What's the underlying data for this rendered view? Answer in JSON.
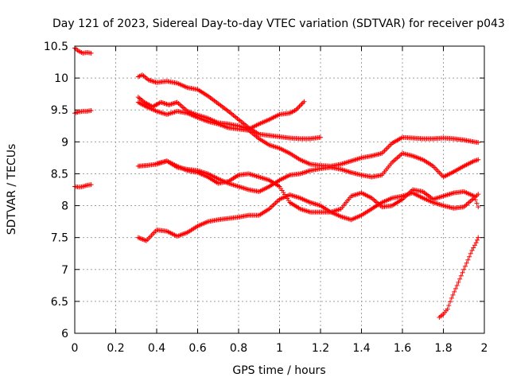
{
  "chart_data": {
    "type": "scatter",
    "title": "Day 121 of 2023, Sidereal Day-to-day VTEC variation (SDTVAR) for receiver p043",
    "xlabel": "GPS time / hours",
    "ylabel": "SDTVAR / TECUs",
    "xlim": [
      0,
      2
    ],
    "ylim": [
      6,
      10.5
    ],
    "grid": true,
    "marker": "+",
    "marker_color": "#ff0000",
    "xticks": [
      {
        "value": 0,
        "label": "0"
      },
      {
        "value": 0.2,
        "label": "0.2"
      },
      {
        "value": 0.4,
        "label": "0.4"
      },
      {
        "value": 0.6,
        "label": "0.6"
      },
      {
        "value": 0.8,
        "label": "0.8"
      },
      {
        "value": 1.0,
        "label": "1"
      },
      {
        "value": 1.2,
        "label": "1.2"
      },
      {
        "value": 1.4,
        "label": "1.4"
      },
      {
        "value": 1.6,
        "label": "1.6"
      },
      {
        "value": 1.8,
        "label": "1.8"
      },
      {
        "value": 2.0,
        "label": "2"
      }
    ],
    "yticks": [
      {
        "value": 6,
        "label": "6"
      },
      {
        "value": 6.5,
        "label": "6.5"
      },
      {
        "value": 7,
        "label": "7"
      },
      {
        "value": 7.5,
        "label": "7.5"
      },
      {
        "value": 8,
        "label": "8"
      },
      {
        "value": 8.5,
        "label": "8.5"
      },
      {
        "value": 9,
        "label": "9"
      },
      {
        "value": 9.5,
        "label": "9.5"
      },
      {
        "value": 10,
        "label": "10"
      },
      {
        "value": 10.5,
        "label": "10.5"
      }
    ],
    "series": [
      {
        "name": "s1",
        "x": [
          0.0,
          0.02,
          0.04,
          0.06,
          0.08
        ],
        "y": [
          10.47,
          10.42,
          10.39,
          10.4,
          10.39
        ]
      },
      {
        "name": "s2",
        "x": [
          0.0,
          0.02,
          0.04,
          0.06,
          0.08
        ],
        "y": [
          9.45,
          9.47,
          9.48,
          9.48,
          9.49
        ]
      },
      {
        "name": "s3",
        "x": [
          0.0,
          0.02,
          0.04,
          0.06,
          0.08
        ],
        "y": [
          8.3,
          8.29,
          8.3,
          8.32,
          8.33
        ]
      },
      {
        "name": "s4",
        "x": [
          0.31,
          0.33,
          0.36,
          0.4,
          0.45,
          0.5,
          0.55,
          0.6,
          0.65,
          0.7,
          0.75,
          0.8,
          0.85,
          0.9,
          0.95,
          1.0,
          1.05,
          1.1,
          1.15,
          1.2
        ],
        "y": [
          10.02,
          10.05,
          9.97,
          9.93,
          9.95,
          9.92,
          9.85,
          9.82,
          9.72,
          9.6,
          9.48,
          9.35,
          9.22,
          9.12,
          9.1,
          9.08,
          9.06,
          9.05,
          9.05,
          9.07
        ]
      },
      {
        "name": "s5",
        "x": [
          0.31,
          0.34,
          0.38,
          0.42,
          0.46,
          0.5,
          0.55,
          0.6,
          0.65,
          0.7,
          0.75,
          0.8,
          0.85,
          0.9,
          0.95,
          1.0,
          1.05,
          1.08,
          1.12
        ],
        "y": [
          9.7,
          9.62,
          9.55,
          9.62,
          9.58,
          9.62,
          9.48,
          9.42,
          9.37,
          9.3,
          9.28,
          9.25,
          9.2,
          9.28,
          9.35,
          9.43,
          9.45,
          9.5,
          9.63
        ]
      },
      {
        "name": "s6",
        "x": [
          0.31,
          0.35,
          0.4,
          0.45,
          0.5,
          0.55,
          0.6,
          0.65,
          0.7,
          0.75,
          0.8,
          0.85,
          0.9,
          0.95,
          1.0,
          1.05,
          1.1,
          1.15,
          1.2,
          1.25,
          1.3,
          1.35,
          1.4,
          1.45,
          1.5,
          1.55,
          1.6,
          1.65,
          1.7,
          1.75,
          1.8,
          1.85,
          1.9,
          1.95,
          1.97
        ],
        "y": [
          9.62,
          9.55,
          9.48,
          9.43,
          9.48,
          9.45,
          9.38,
          9.32,
          9.28,
          9.22,
          9.2,
          9.18,
          9.05,
          8.95,
          8.9,
          8.82,
          8.72,
          8.65,
          8.63,
          8.62,
          8.65,
          8.7,
          8.75,
          8.78,
          8.82,
          8.98,
          9.07,
          9.06,
          9.05,
          9.05,
          9.06,
          9.05,
          9.03,
          9.0,
          8.99
        ]
      },
      {
        "name": "s7",
        "x": [
          0.31,
          0.35,
          0.4,
          0.45,
          0.5,
          0.55,
          0.6,
          0.65,
          0.7,
          0.75,
          0.8,
          0.85,
          0.9,
          0.95,
          1.0,
          1.05,
          1.1,
          1.15,
          1.2,
          1.25,
          1.3,
          1.35,
          1.4,
          1.45,
          1.5,
          1.55,
          1.6,
          1.65,
          1.7,
          1.75,
          1.8,
          1.85,
          1.9,
          1.95,
          1.97
        ],
        "y": [
          8.62,
          8.63,
          8.65,
          8.7,
          8.6,
          8.57,
          8.55,
          8.5,
          8.42,
          8.35,
          8.3,
          8.25,
          8.22,
          8.3,
          8.4,
          8.48,
          8.5,
          8.55,
          8.58,
          8.6,
          8.57,
          8.52,
          8.48,
          8.45,
          8.48,
          8.68,
          8.82,
          8.78,
          8.72,
          8.62,
          8.45,
          8.53,
          8.62,
          8.7,
          8.72
        ]
      },
      {
        "name": "s8",
        "x": [
          0.31,
          0.35,
          0.4,
          0.45,
          0.5,
          0.55,
          0.6,
          0.65,
          0.7,
          0.75,
          0.8,
          0.85,
          0.9,
          0.95,
          1.0,
          1.05,
          1.1,
          1.15,
          1.2,
          1.25,
          1.3,
          1.35,
          1.4,
          1.45,
          1.5,
          1.55,
          1.6,
          1.65,
          1.7,
          1.75,
          1.8,
          1.85,
          1.9,
          1.95,
          1.97
        ],
        "y": [
          7.5,
          7.45,
          7.62,
          7.6,
          7.52,
          7.58,
          7.68,
          7.75,
          7.78,
          7.8,
          7.82,
          7.85,
          7.85,
          7.95,
          8.1,
          8.17,
          8.12,
          8.05,
          8.0,
          7.9,
          7.83,
          7.78,
          7.85,
          7.95,
          8.05,
          8.12,
          8.15,
          8.2,
          8.12,
          8.05,
          8.0,
          7.96,
          7.98,
          8.12,
          8.18
        ]
      },
      {
        "name": "s9",
        "x": [
          0.4,
          0.45,
          0.5,
          0.55,
          0.6,
          0.65,
          0.7,
          0.75,
          0.8,
          0.85,
          0.9,
          0.95,
          1.0,
          1.05,
          1.1,
          1.15,
          1.2,
          1.25,
          1.3,
          1.35,
          1.4,
          1.45,
          1.5,
          1.55,
          1.6,
          1.65,
          1.7,
          1.75,
          1.8,
          1.85,
          1.9,
          1.95,
          1.97
        ],
        "y": [
          8.66,
          8.7,
          8.62,
          8.55,
          8.52,
          8.45,
          8.35,
          8.38,
          8.48,
          8.5,
          8.45,
          8.4,
          8.3,
          8.05,
          7.95,
          7.9,
          7.9,
          7.9,
          7.95,
          8.15,
          8.2,
          8.12,
          7.98,
          8.0,
          8.1,
          8.25,
          8.22,
          8.1,
          8.15,
          8.2,
          8.22,
          8.15,
          7.98
        ]
      },
      {
        "name": "s10",
        "x": [
          1.78,
          1.8,
          1.82,
          1.84,
          1.86,
          1.88,
          1.9,
          1.92,
          1.94,
          1.96,
          1.97
        ],
        "y": [
          6.25,
          6.3,
          6.38,
          6.55,
          6.7,
          6.85,
          7.0,
          7.15,
          7.3,
          7.42,
          7.5
        ]
      }
    ]
  }
}
